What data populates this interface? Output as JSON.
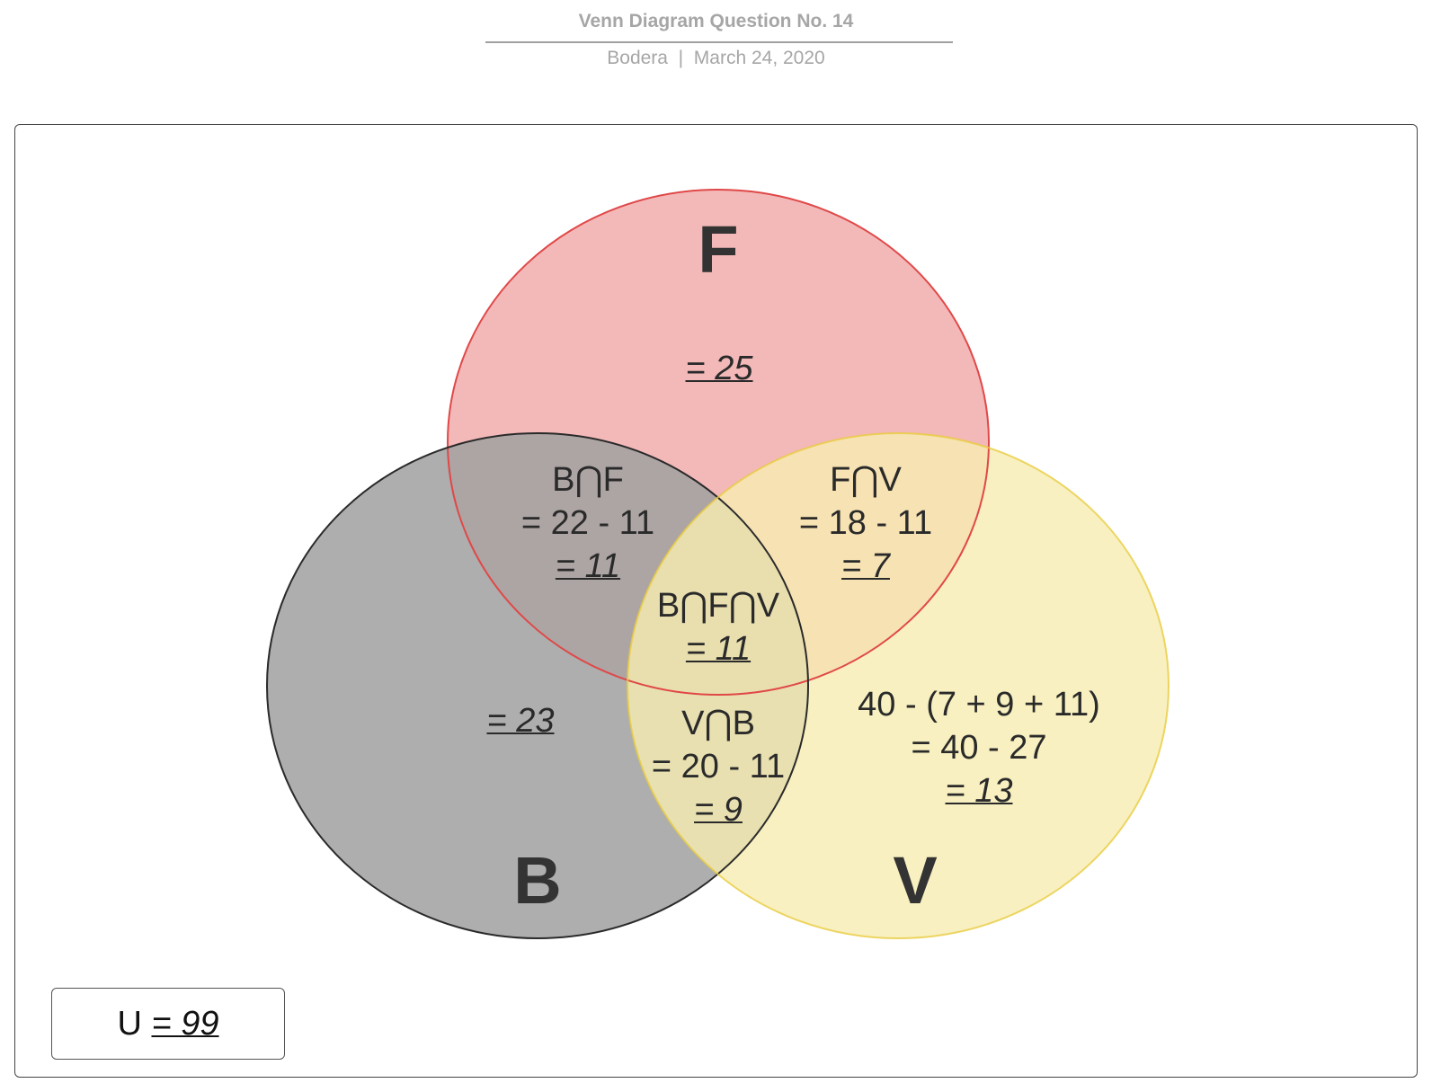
{
  "header": {
    "title": "Venn Diagram Question No. 14",
    "author": "Bodera",
    "separator": "|",
    "date": "March 24, 2020"
  },
  "sets": {
    "F": {
      "label": "F",
      "color": "#f0a6a6",
      "border": "#e04848"
    },
    "B": {
      "label": "B",
      "color": "#a0a0a0",
      "border": "#2a2a2a"
    },
    "V": {
      "label": "V",
      "color": "#f6ecb0",
      "border": "#e8cc40"
    }
  },
  "regions": {
    "f_only": {
      "result": "= 25"
    },
    "b_only": {
      "result": "= 23"
    },
    "v_only": {
      "line1": "40 - (7 + 9 + 11)",
      "line2": "= 40 - 27",
      "result": "= 13"
    },
    "b_and_f": {
      "title": "B⋂F",
      "calc": "= 22 - 11",
      "result": "= 11"
    },
    "f_and_v": {
      "title": "F⋂V",
      "calc": "= 18 - 11",
      "result": "= 7"
    },
    "v_and_b": {
      "title": "V⋂B",
      "calc": "= 20 - 11",
      "result": "= 9"
    },
    "b_f_v": {
      "title": "B⋂F⋂V",
      "result": "= 11"
    }
  },
  "universe": {
    "label": "U",
    "result": "= 99"
  }
}
